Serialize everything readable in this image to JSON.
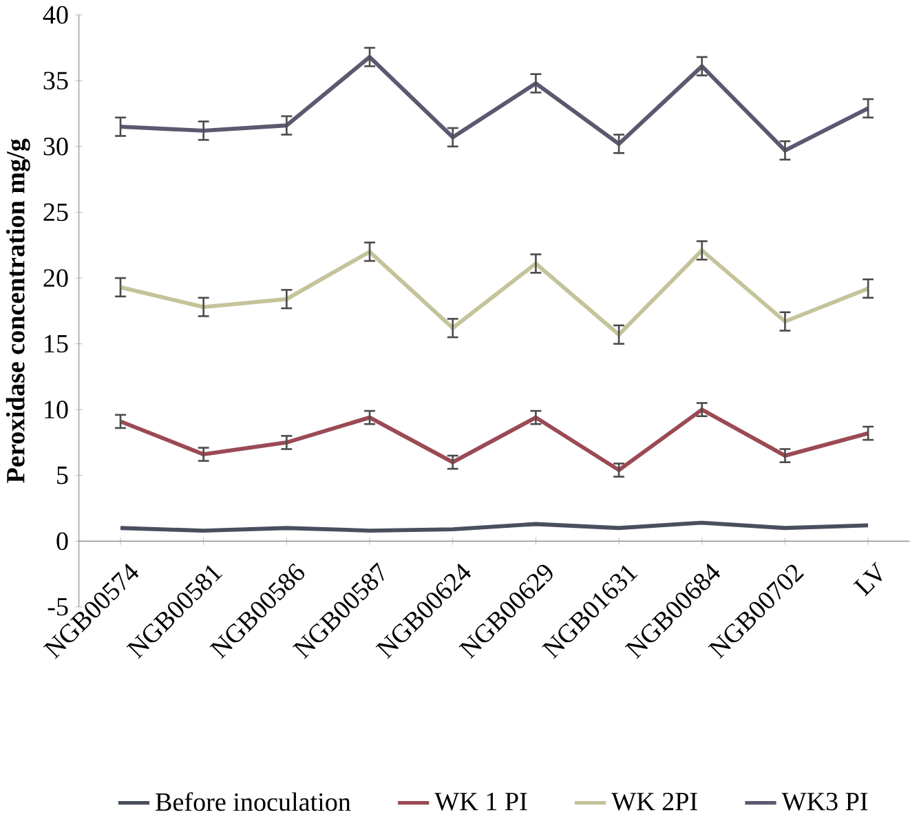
{
  "chart_data": {
    "type": "line",
    "ylabel": "Peroxidase concentration   mg/g",
    "categories": [
      "NGB00574",
      "NGB00581",
      "NGB00586",
      "NGB00587",
      "NGB00624",
      "NGB00629",
      "NGB01631",
      "NGB00684",
      "NGB00702",
      "LV"
    ],
    "ylim": [
      -5,
      40
    ],
    "yticks": [
      -5,
      0,
      5,
      10,
      15,
      20,
      25,
      30,
      35,
      40
    ],
    "legend": "bottom",
    "marker": "none",
    "line_style": "solid",
    "grid": false,
    "series": [
      {
        "name": "Before inoculation",
        "color": "#4a4f5e",
        "values": [
          1.0,
          0.8,
          1.0,
          0.8,
          0.9,
          1.3,
          1.0,
          1.4,
          1.0,
          1.2
        ]
      },
      {
        "name": "WK 1 PI",
        "color": "#9b4a55",
        "values": [
          9.1,
          6.6,
          7.5,
          9.4,
          6.0,
          9.4,
          5.4,
          10.0,
          6.5,
          8.2
        ],
        "errors": [
          0.5,
          0.5,
          0.5,
          0.5,
          0.5,
          0.5,
          0.5,
          0.5,
          0.5,
          0.5
        ]
      },
      {
        "name": "WK 2PI",
        "color": "#c4c39a",
        "values": [
          19.3,
          17.8,
          18.4,
          22.0,
          16.2,
          21.1,
          15.7,
          22.1,
          16.7,
          19.2
        ],
        "errors": [
          0.7,
          0.7,
          0.7,
          0.7,
          0.7,
          0.7,
          0.7,
          0.7,
          0.7,
          0.7
        ]
      },
      {
        "name": "WK3 PI",
        "color": "#5c5870",
        "values": [
          31.5,
          31.2,
          31.6,
          36.8,
          30.7,
          34.8,
          30.2,
          36.1,
          29.7,
          32.9
        ],
        "errors": [
          0.7,
          0.7,
          0.7,
          0.7,
          0.7,
          0.7,
          0.7,
          0.7,
          0.7,
          0.7
        ]
      }
    ]
  }
}
